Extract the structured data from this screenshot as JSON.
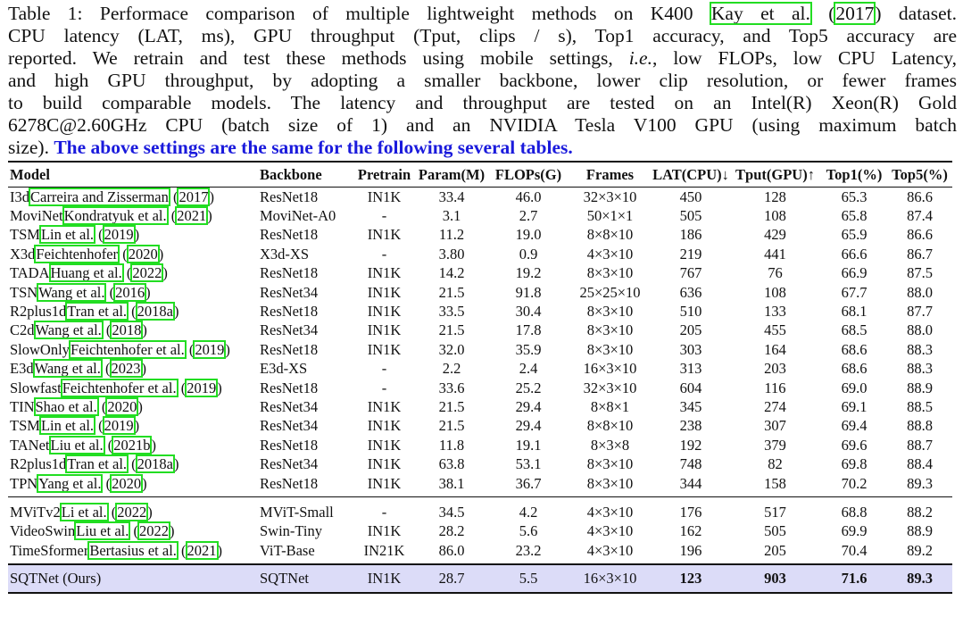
{
  "caption": {
    "lines": [
      [
        "Table 1: Performace comparison of multiple lightweight methods on K400 ",
        {
          "cite": "Kay et al."
        },
        " (",
        {
          "cite": "2017"
        },
        ") dataset."
      ],
      [
        "CPU latency (LAT, ms), GPU throughput (Tput, clips / s), Top1 accuracy, and Top5 accuracy are"
      ],
      [
        "reported. We retrain and test these methods using mobile settings, ",
        {
          "it": "i.e."
        },
        ", low FLOPs, low CPU Latency,"
      ],
      [
        "and high GPU throughput, by adopting a smaller backbone, lower clip resolution, or fewer frames"
      ],
      [
        "to build comparable models. The latency and throughput are tested on an Intel(R) Xeon(R) Gold"
      ],
      [
        "6278C@2.60GHz CPU (batch size of 1) and an NVIDIA Tesla V100 GPU (using maximum batch"
      ],
      [
        "size). ",
        {
          "blue": "The above settings are the same for the following several tables."
        }
      ]
    ]
  },
  "table": {
    "headers": [
      "Model",
      "Backbone",
      "Pretrain",
      "Param(M)",
      "FLOPs(G)",
      "Frames",
      "LAT(CPU)↓",
      "Tput(GPU)↑",
      "Top1(%)",
      "Top5(%)"
    ],
    "groups": [
      [
        {
          "name": "I3d",
          "authors": "Carreira and Zisserman",
          "year": "2017",
          "cells": [
            "ResNet18",
            "IN1K",
            "33.4",
            "46.0",
            "32×3×10",
            "450",
            "128",
            "65.3",
            "86.6"
          ]
        },
        {
          "name": "MoviNet",
          "authors": "Kondratyuk et al.",
          "year": "2021",
          "cells": [
            "MoviNet-A0",
            "-",
            "3.1",
            "2.7",
            "50×1×1",
            "505",
            "108",
            "65.8",
            "87.4"
          ]
        },
        {
          "name": "TSM",
          "authors": "Lin et al.",
          "year": "2019",
          "cells": [
            "ResNet18",
            "IN1K",
            "11.2",
            "19.0",
            "8×8×10",
            "186",
            "429",
            "65.9",
            "86.6"
          ]
        },
        {
          "name": "X3d",
          "authors": "Feichtenhofer",
          "year": "2020",
          "cells": [
            "X3d-XS",
            "-",
            "3.80",
            "0.9",
            "4×3×10",
            "219",
            "441",
            "66.6",
            "86.7"
          ]
        },
        {
          "name": "TADA",
          "authors": "Huang et al.",
          "year": "2022",
          "cells": [
            "ResNet18",
            "IN1K",
            "14.2",
            "19.2",
            "8×3×10",
            "767",
            "76",
            "66.9",
            "87.5"
          ]
        },
        {
          "name": "TSN",
          "authors": "Wang et al.",
          "year": "2016",
          "cells": [
            "ResNet34",
            "IN1K",
            "21.5",
            "91.8",
            "25×25×10",
            "636",
            "108",
            "67.7",
            "88.0"
          ]
        },
        {
          "name": "R2plus1d",
          "authors": "Tran et al.",
          "year": "2018a",
          "cells": [
            "ResNet18",
            "IN1K",
            "33.5",
            "30.4",
            "8×3×10",
            "510",
            "133",
            "68.1",
            "87.7"
          ]
        },
        {
          "name": "C2d",
          "authors": "Wang et al.",
          "year": "2018",
          "cells": [
            "ResNet34",
            "IN1K",
            "21.5",
            "17.8",
            "8×3×10",
            "205",
            "455",
            "68.5",
            "88.0"
          ]
        },
        {
          "name": "SlowOnly",
          "authors": "Feichtenhofer et al.",
          "year": "2019",
          "cells": [
            "ResNet18",
            "IN1K",
            "32.0",
            "35.9",
            "8×3×10",
            "303",
            "164",
            "68.6",
            "88.3"
          ]
        },
        {
          "name": "E3d",
          "authors": "Wang et al.",
          "year": "2023",
          "cells": [
            "E3d-XS",
            "-",
            "2.2",
            "2.4",
            "16×3×10",
            "313",
            "203",
            "68.6",
            "88.3"
          ]
        },
        {
          "name": "Slowfast",
          "authors": "Feichtenhofer et al.",
          "year": "2019",
          "cells": [
            "ResNet18",
            "-",
            "33.6",
            "25.2",
            "32×3×10",
            "604",
            "116",
            "69.0",
            "88.9"
          ]
        },
        {
          "name": "TIN",
          "authors": "Shao et al.",
          "year": "2020",
          "cells": [
            "ResNet34",
            "IN1K",
            "21.5",
            "29.4",
            "8×8×1",
            "345",
            "274",
            "69.1",
            "88.5"
          ]
        },
        {
          "name": "TSM",
          "authors": "Lin et al.",
          "year": "2019",
          "cells": [
            "ResNet34",
            "IN1K",
            "21.5",
            "29.4",
            "8×8×10",
            "238",
            "307",
            "69.4",
            "88.8"
          ]
        },
        {
          "name": "TANet",
          "authors": "Liu et al.",
          "year": "2021b",
          "cells": [
            "ResNet18",
            "IN1K",
            "11.8",
            "19.1",
            "8×3×8",
            "192",
            "379",
            "69.6",
            "88.7"
          ]
        },
        {
          "name": "R2plus1d",
          "authors": "Tran et al.",
          "year": "2018a",
          "cells": [
            "ResNet34",
            "IN1K",
            "63.8",
            "53.1",
            "8×3×10",
            "748",
            "82",
            "69.8",
            "88.4"
          ]
        },
        {
          "name": "TPN",
          "authors": "Yang et al.",
          "year": "2020",
          "cells": [
            "ResNet18",
            "IN1K",
            "38.1",
            "36.7",
            "8×3×10",
            "344",
            "158",
            "70.2",
            "89.3"
          ]
        }
      ],
      [
        {
          "name": "MViTv2",
          "authors": "Li et al.",
          "year": "2022",
          "cells": [
            "MViT-Small",
            "-",
            "34.5",
            "4.2",
            "4×3×10",
            "176",
            "517",
            "68.8",
            "88.2"
          ]
        },
        {
          "name": "VideoSwin",
          "authors": "Liu et al.",
          "year": "2022",
          "cells": [
            "Swin-Tiny",
            "IN1K",
            "28.2",
            "5.6",
            "4×3×10",
            "162",
            "505",
            "69.9",
            "88.9"
          ]
        },
        {
          "name": "TimeSformer",
          "authors": "Bertasius et al.",
          "year": "2021",
          "cells": [
            "ViT-Base",
            "IN21K",
            "86.0",
            "23.2",
            "4×3×10",
            "196",
            "205",
            "70.4",
            "89.2"
          ]
        }
      ]
    ],
    "ours": {
      "name": "SQTNet (Ours)",
      "cells": [
        "SQTNet",
        "IN1K",
        "28.7",
        "5.5",
        "16×3×10",
        "123",
        "903",
        "71.6",
        "89.3"
      ]
    },
    "ours_bold_from": 5
  },
  "colors": {
    "cite_box": "#22dd22",
    "highlight_row": "#dcdcf8",
    "emphasis_text": "#1a1adc"
  }
}
